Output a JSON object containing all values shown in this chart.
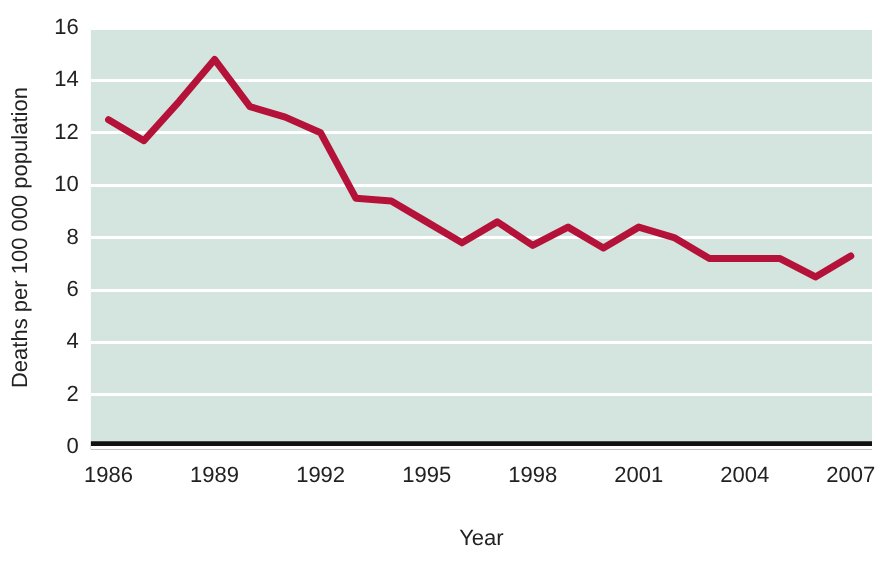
{
  "chart_data": {
    "type": "line",
    "xlabel": "Year",
    "ylabel": "Deaths per 100 000 population",
    "x": [
      1986,
      1987,
      1988,
      1989,
      1990,
      1991,
      1992,
      1993,
      1994,
      1995,
      1996,
      1997,
      1998,
      1999,
      2000,
      2001,
      2002,
      2003,
      2004,
      2005,
      2006,
      2007
    ],
    "series": [
      {
        "color": "#b5123a",
        "values": [
          12.5,
          11.7,
          13.2,
          14.8,
          13.0,
          12.6,
          12.0,
          9.5,
          9.4,
          8.6,
          7.8,
          8.6,
          7.7,
          8.4,
          7.6,
          8.4,
          8.0,
          7.2,
          7.2,
          7.2,
          6.5,
          7.3
        ]
      }
    ],
    "xlim": [
      1985.5,
      2007.6
    ],
    "xticks": [
      1986,
      1989,
      1992,
      1995,
      1998,
      2001,
      2004,
      2007
    ],
    "ylim": [
      0,
      16
    ],
    "yticks": [
      0,
      2,
      4,
      6,
      8,
      10,
      12,
      14,
      16
    ],
    "grid": "y",
    "legend": false,
    "marker": "none",
    "line_style": "solid"
  }
}
